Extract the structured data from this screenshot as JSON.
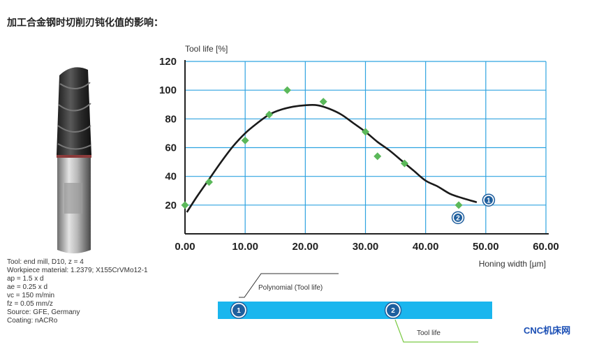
{
  "title": "加工合金钢时切削刃钝化值的影响：",
  "info_lines": [
    "Tool: end mill, D10, z = 4",
    "Workpiece material: 1.2379; X155CrVMo12-1",
    "ap = 1.5 x d",
    "ae = 0.25 x d",
    "vc = 150 m/min",
    "fz = 0.05 mm/z",
    "Source: GFE, Germany",
    "Coating: nACRo"
  ],
  "watermark": "CNC机床网",
  "colors": {
    "grid": "#2ea3e0",
    "points": "#5bb85a",
    "curve": "#1a1a1a",
    "band": "#1ab6ee",
    "badge": "#1f5f9e",
    "legend_line_2": "#7ac943"
  },
  "chart_data": {
    "type": "scatter",
    "xlabel": "Honing width [µm]",
    "ylabel": "Tool life [%]",
    "xlim": [
      0,
      60
    ],
    "ylim": [
      0,
      120
    ],
    "x_ticks": [
      "0.00",
      "10.00",
      "20.00",
      "30.00",
      "40.00",
      "50.00",
      "60.00"
    ],
    "y_ticks": [
      "20",
      "40",
      "60",
      "80",
      "100",
      "120"
    ],
    "grid": true,
    "series": [
      {
        "name": "Tool life",
        "marker": "diamond",
        "badge": "2",
        "points": [
          [
            0,
            20
          ],
          [
            4,
            36
          ],
          [
            10,
            65
          ],
          [
            14,
            83
          ],
          [
            17,
            100
          ],
          [
            23,
            92
          ],
          [
            30,
            71
          ],
          [
            32,
            54
          ],
          [
            36.5,
            49
          ],
          [
            45.5,
            20
          ]
        ]
      },
      {
        "name": "Polynomial (Tool life)",
        "style": "line",
        "badge": "1",
        "points": [
          [
            0.3,
            15
          ],
          [
            2,
            26
          ],
          [
            4,
            38
          ],
          [
            6,
            50
          ],
          [
            8,
            61
          ],
          [
            10,
            70
          ],
          [
            12,
            77
          ],
          [
            14,
            83
          ],
          [
            16,
            86.5
          ],
          [
            18,
            88.5
          ],
          [
            20,
            89.5
          ],
          [
            22,
            89.5
          ],
          [
            24,
            87
          ],
          [
            26,
            83
          ],
          [
            28,
            77
          ],
          [
            30,
            71
          ],
          [
            32,
            64
          ],
          [
            34,
            58
          ],
          [
            36,
            51
          ],
          [
            38,
            44
          ],
          [
            40,
            37
          ],
          [
            42,
            33
          ],
          [
            44,
            28
          ],
          [
            46,
            25
          ],
          [
            48.5,
            22
          ]
        ]
      }
    ],
    "legend": [
      {
        "badge": "1",
        "label": "Polynomial (Tool life)"
      },
      {
        "badge": "2",
        "label": "Tool life"
      }
    ]
  }
}
